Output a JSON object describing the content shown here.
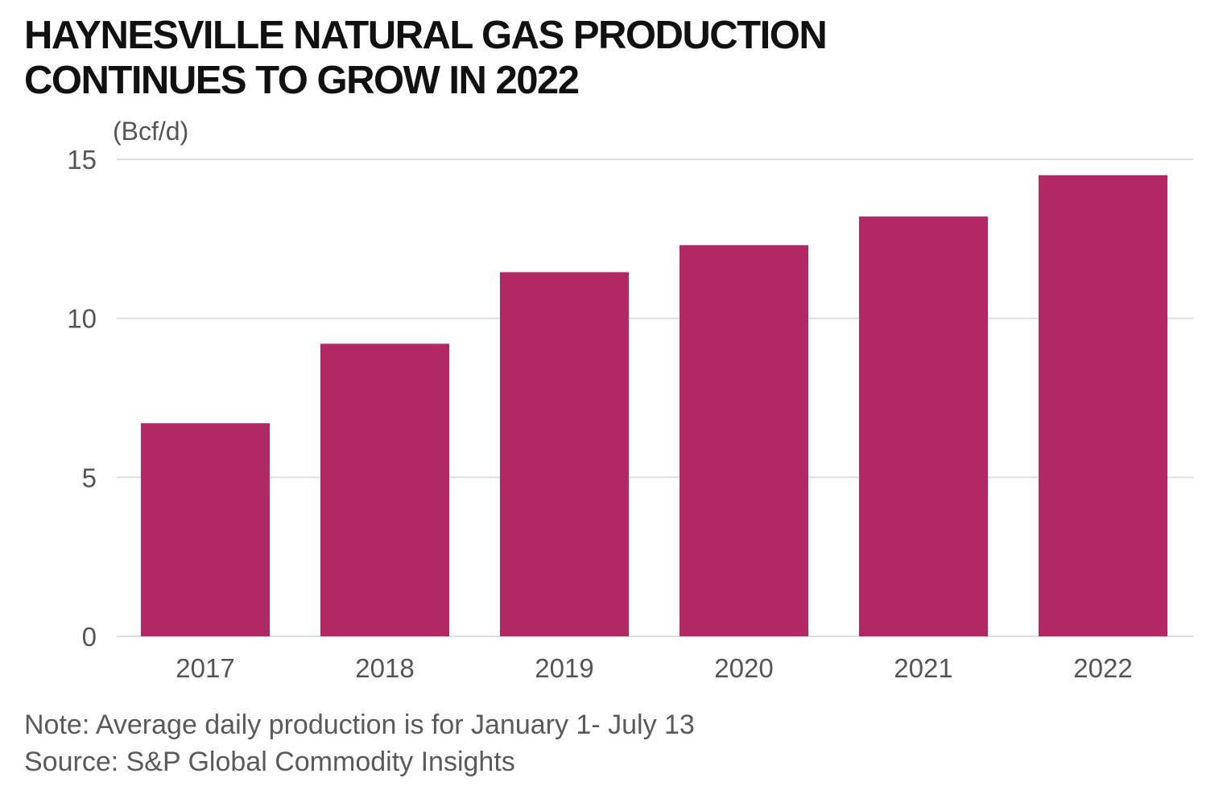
{
  "chart_data": {
    "type": "bar",
    "title_lines": [
      "HAYNESVILLE NATURAL GAS PRODUCTION",
      "CONTINUES TO GROW IN 2022"
    ],
    "ylabel": "(Bcf/d)",
    "categories": [
      "2017",
      "2018",
      "2019",
      "2020",
      "2021",
      "2022"
    ],
    "values": [
      6.7,
      9.2,
      11.45,
      12.3,
      13.2,
      14.5
    ],
    "ylim": [
      0,
      15
    ],
    "yticks": [
      0,
      5,
      10,
      15
    ],
    "ytick_labels": [
      "0",
      "5",
      "10",
      "15"
    ],
    "grid": true,
    "bar_color": "#B22864",
    "grid_color": "#dddddd"
  },
  "footer": {
    "note": "Note: Average daily production is for January 1- July 13",
    "source": "Source: S&P Global Commodity Insights"
  }
}
